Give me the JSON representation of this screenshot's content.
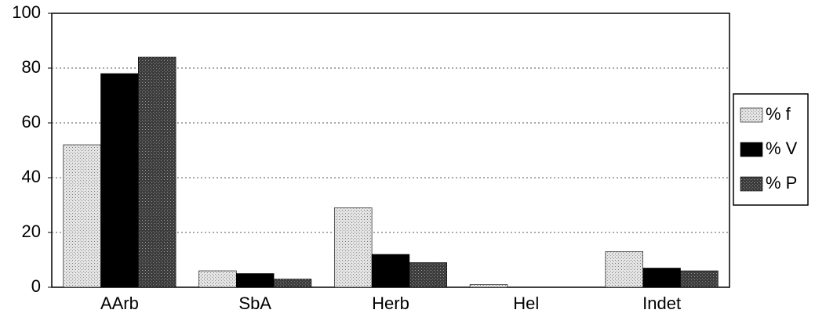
{
  "chart_data": {
    "type": "bar",
    "categories": [
      "AArb",
      "SbA",
      "Herb",
      "Hel",
      "Indet"
    ],
    "series": [
      {
        "name": "% f",
        "color": "#d9d9d9",
        "values": [
          52,
          6,
          29,
          1,
          13
        ]
      },
      {
        "name": "% V",
        "color": "#000000",
        "values": [
          78,
          5,
          12,
          0,
          7
        ]
      },
      {
        "name": "% P",
        "color": "#4a4a4a",
        "values": [
          84,
          3,
          9,
          0,
          6
        ]
      }
    ],
    "ylim": [
      0,
      100
    ],
    "yticks": [
      0,
      20,
      40,
      60,
      80,
      100
    ],
    "grid": true,
    "legend": "right"
  }
}
